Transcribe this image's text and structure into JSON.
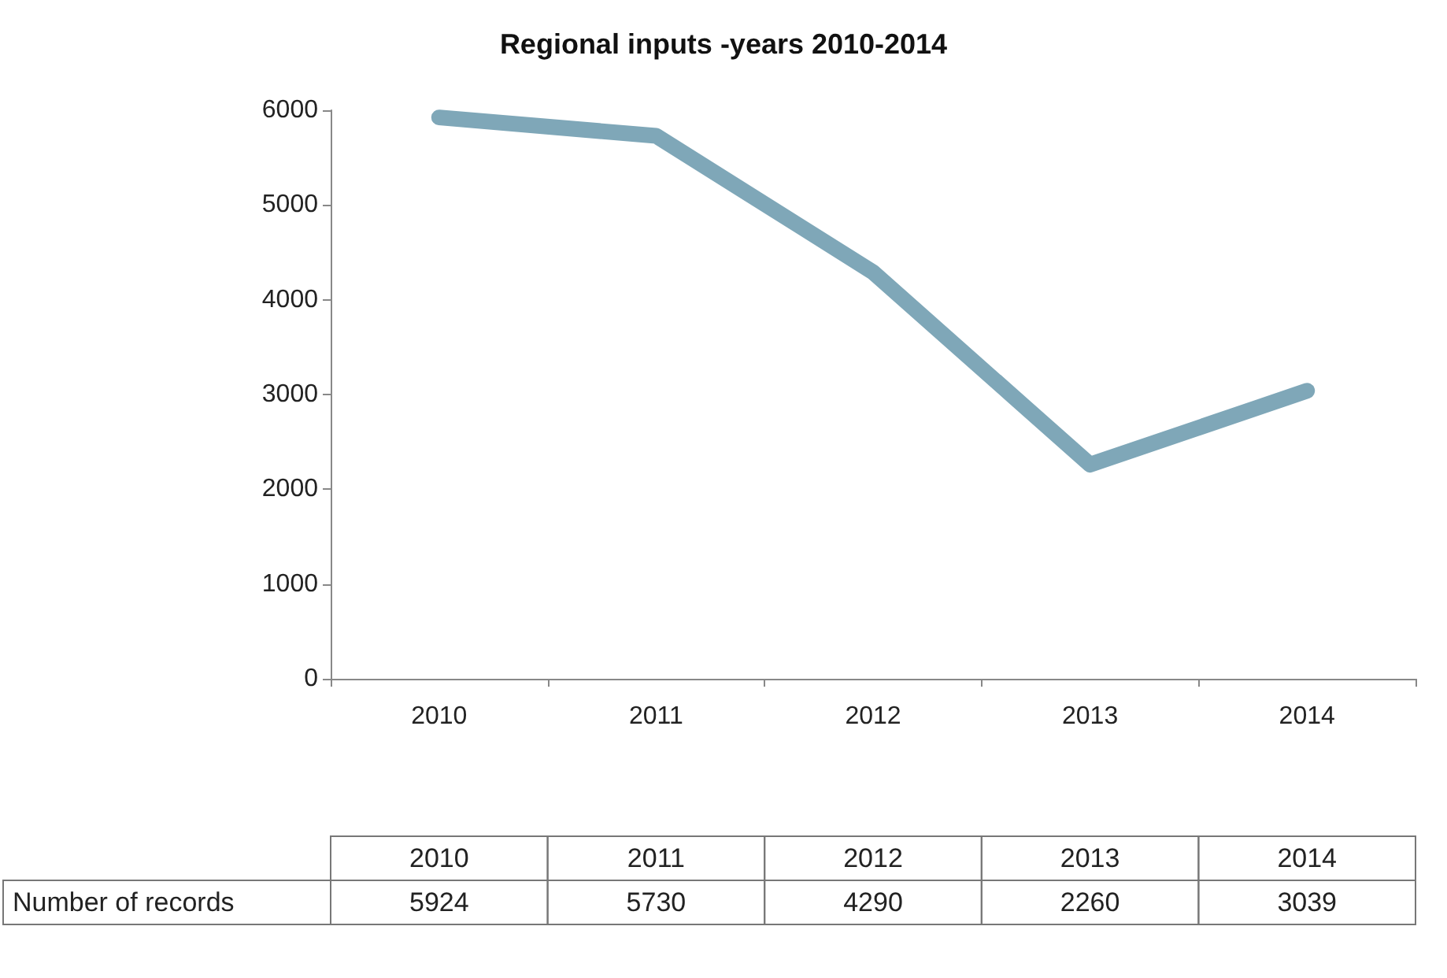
{
  "chart_data": {
    "type": "line",
    "title": "Regional inputs -years 2010-2014",
    "categories": [
      "2010",
      "2011",
      "2012",
      "2013",
      "2014"
    ],
    "series": [
      {
        "name": "Number of records",
        "color": "#7fa7b8",
        "values": [
          5924,
          5730,
          4290,
          2260,
          3039
        ]
      }
    ],
    "ylim": [
      0,
      6000
    ],
    "yticks": [
      0,
      1000,
      2000,
      3000,
      4000,
      5000,
      6000
    ],
    "grid": false,
    "line_style": "solid",
    "data_labels": true
  }
}
